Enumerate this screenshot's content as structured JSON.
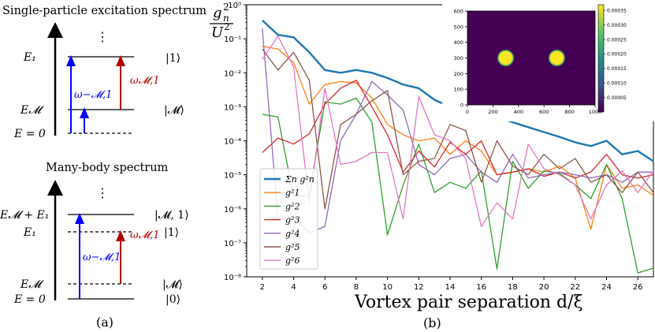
{
  "panel_a": {
    "top_title": "Single-particle excitation spectrum",
    "bottom_title": "Many-body spectrum",
    "dots": "⋮",
    "caption": "(a)",
    "top": {
      "levels": [
        "E",
        "1",
        "E",
        "𝓜",
        "E = 0"
      ],
      "level_E1": "E₁",
      "level_EM": "E𝓜",
      "level_E0": "E = 0",
      "ket_1": "|1⟩",
      "ket_M": "|𝓜⟩",
      "omega_minus": "ω−𝓜,1",
      "omega_plus": "ω𝓜,1"
    },
    "bottom": {
      "level_EME1": "E𝓜 + E₁",
      "level_E1": "E₁",
      "level_EM": "E𝓜",
      "level_E0": "E = 0",
      "ket_M1": "|𝓜, 1⟩",
      "ket_1": "|1⟩",
      "ket_M": "|𝓜⟩",
      "ket_0": "|0⟩",
      "omega_minus": "ω−𝓜,1",
      "omega_plus": "ω𝓜,1"
    },
    "colors": {
      "blue": "#0000ff",
      "red": "#b00000"
    }
  },
  "panel_b": {
    "caption": "(b)",
    "ylabel_num": "g",
    "ylabel_sub": "n",
    "ylabel_sup": "2",
    "ylabel_den": "U",
    "ylabel_den_sup": "2"
  },
  "chart_data": [
    {
      "type": "line",
      "xlabel": "Vortex pair separation d/ξ",
      "ylabel": "g_n^2 / U^2",
      "yscale": "log",
      "ylim": [
        1e-08,
        1
      ],
      "xlim": [
        1,
        27
      ],
      "x_ticks": [
        2,
        4,
        6,
        8,
        10,
        12,
        14,
        16,
        18,
        20,
        22,
        24,
        26
      ],
      "y_ticks": [
        "10⁻⁸",
        "10⁻⁷",
        "10⁻⁶",
        "10⁻⁵",
        "10⁻⁴",
        "10⁻³",
        "10⁻²",
        "10⁻¹",
        "10⁰"
      ],
      "legend_position": "lower-left",
      "x": [
        2,
        3,
        4,
        5,
        6,
        7,
        8,
        9,
        10,
        11,
        12,
        13,
        14,
        15,
        16,
        17,
        18,
        19,
        20,
        21,
        22,
        23,
        24,
        25,
        26,
        27
      ],
      "series": [
        {
          "name": "Σn g²n",
          "color": "#1f77b4",
          "values": [
            0.35,
            0.13,
            0.11,
            0.04,
            0.012,
            0.01,
            0.012,
            0.01,
            0.007,
            0.0045,
            0.0035,
            0.0016,
            0.001,
            0.0008,
            0.0008,
            0.0005,
            0.00035,
            0.00025,
            0.00018,
            0.00013,
            9e-05,
            7e-05,
            0.0001,
            4e-05,
            5e-05,
            2.5e-05
          ]
        },
        {
          "name": "g²1",
          "color": "#ff7f0e",
          "values": [
            0.06,
            0.05,
            0.02,
            0.0012,
            0.0045,
            0.0055,
            0.005,
            0.0018,
            0.0003,
            0.00015,
            0.0001,
            0.00012,
            4e-05,
            0.0001,
            5e-05,
            1e-05,
            1.2e-05,
            1.5e-05,
            1.2e-05,
            1.8e-05,
            8e-06,
            2.5e-07,
            2e-05,
            4e-06,
            5e-06,
            2.5e-06
          ]
        },
        {
          "name": "g²2",
          "color": "#2ca02c",
          "values": [
            0.0006,
            0.0005,
            2.2e-06,
            2.5e-06,
            0.0014,
            0.0012,
            0.0018,
            0.00035,
            1.7e-07,
            5e-06,
            8e-05,
            3e-06,
            6e-06,
            4e-06,
            1.3e-05,
            1.7e-08,
            2.5e-05,
            4e-06,
            1.3e-05,
            1.1e-05,
            5e-06,
            2e-06,
            2e-05,
            2e-06,
            1.3e-08,
            1.8e-08
          ]
        },
        {
          "name": "g²3",
          "color": "#d62728",
          "values": [
            4.5e-05,
            0.00012,
            8e-05,
            0.00016,
            0.0012,
            0.0035,
            0.006,
            0.001,
            0.00015,
            1.2e-05,
            5e-05,
            1.7e-05,
            9e-05,
            4e-05,
            0.0001,
            1e-05,
            1.2e-05,
            1.5e-05,
            9e-06,
            1.2e-05,
            8e-06,
            1.2e-05,
            4e-05,
            1e-05,
            8e-06,
            1e-05
          ]
        },
        {
          "name": "g²4",
          "color": "#9467bd",
          "values": [
            0.2,
            5e-07,
            6e-07,
            2e-07,
            3e-07,
            0.0001,
            0.0006,
            0.0055,
            0.0022,
            0.0008,
            2e-05,
            1e-05,
            3e-05,
            4e-05,
            1.2e-05,
            6e-06,
            4e-05,
            8e-06,
            1e-05,
            1.2e-05,
            1e-05,
            8e-06,
            1e-05,
            6e-06,
            1.2e-05,
            1.2e-05
          ]
        },
        {
          "name": "g²5",
          "color": "#8c564b",
          "values": [
            0.05,
            0.012,
            0.04,
            0.006,
            1e-06,
            0.0003,
            0.0006,
            0.0015,
            0.003,
            1e-05,
            2.5e-05,
            3e-05,
            0.0003,
            0.0002,
            6e-06,
            0.0001,
            1.8e-05,
            1e-05,
            4e-05,
            1.5e-05,
            3e-05,
            6e-06,
            1e-05,
            3e-06,
            1.2e-05,
            3e-06
          ]
        },
        {
          "name": "g²6",
          "color": "#e377c2",
          "values": [
            0.025,
            0.12,
            0.015,
            1.5e-06,
            0.0035,
            2e-05,
            2.5e-05,
            4.5e-05,
            4.5e-05,
            5e-07,
            0.002,
            0.00015,
            0.0001,
            3e-05,
            3e-07,
            1.5e-06,
            5e-07,
            8e-05,
            1.5e-05,
            1e-05,
            5e-06,
            5e-07,
            5e-06,
            1.3e-05,
            3e-06,
            1.3e-05
          ]
        }
      ]
    },
    {
      "type": "heatmap",
      "xlim": [
        0,
        1000
      ],
      "ylim": [
        0,
        600
      ],
      "x_ticks": [
        0,
        200,
        400,
        600,
        800,
        1000
      ],
      "y_ticks": [
        0,
        100,
        200,
        300,
        400,
        500,
        600
      ],
      "colorbar_ticks": [
        "0.00005",
        "0.00010",
        "0.00015",
        "0.00020",
        "0.00025",
        "0.00030",
        "0.00035"
      ],
      "spots": [
        {
          "x": 300,
          "y": 300
        },
        {
          "x": 700,
          "y": 300
        }
      ],
      "background_color": "#440154",
      "spot_color": "#fde725"
    }
  ]
}
